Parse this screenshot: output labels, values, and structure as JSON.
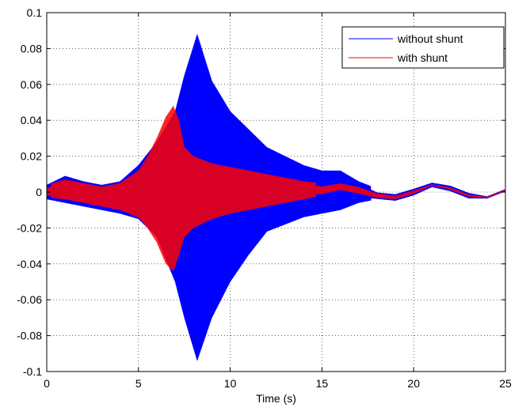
{
  "chart_data": {
    "type": "line",
    "title": "",
    "xlabel": "Time (s)",
    "ylabel": "",
    "xlim": [
      0,
      25
    ],
    "ylim": [
      -0.1,
      0.1
    ],
    "grid": true,
    "legend_position": "top-right",
    "xticks": [
      0,
      5,
      10,
      15,
      20,
      25
    ],
    "xtick_labels": [
      "0",
      "5",
      "10",
      "15",
      "20",
      "25"
    ],
    "yticks": [
      -0.1,
      -0.08,
      -0.06,
      -0.04,
      -0.02,
      0,
      0.02,
      0.04,
      0.06,
      0.08,
      0.1
    ],
    "ytick_labels": [
      "-0.1",
      "-0.08",
      "-0.06",
      "-0.04",
      "-0.02",
      "0",
      "0.02",
      "0.04",
      "0.06",
      "0.08",
      "0.1"
    ],
    "series": [
      {
        "name": "without shunt",
        "color": "#0000ff",
        "envelope": {
          "t": [
            0,
            1,
            2,
            3,
            4,
            5,
            6,
            7,
            7.5,
            8.2,
            9,
            10,
            11,
            12,
            13,
            14,
            15,
            16,
            17,
            18,
            19,
            20,
            21,
            22,
            23,
            24,
            25
          ],
          "upper": [
            0.004,
            0.009,
            0.006,
            0.004,
            0.006,
            0.015,
            0.028,
            0.045,
            0.065,
            0.088,
            0.062,
            0.045,
            0.035,
            0.025,
            0.02,
            0.015,
            0.012,
            0.012,
            0.006,
            0.002,
            0.002,
            0.004,
            0.005,
            0.003,
            0.001,
            -0.002,
            0.002
          ],
          "lower": [
            -0.004,
            -0.006,
            -0.008,
            -0.01,
            -0.012,
            -0.015,
            -0.025,
            -0.05,
            -0.07,
            -0.094,
            -0.07,
            -0.05,
            -0.035,
            -0.022,
            -0.018,
            -0.014,
            -0.012,
            -0.01,
            -0.006,
            -0.004,
            -0.004,
            -0.002,
            0.001,
            -0.002,
            -0.004,
            -0.004,
            0.0
          ]
        },
        "baseline": {
          "t": [
            0,
            1,
            2,
            3,
            4,
            5,
            6,
            7,
            8,
            9,
            10,
            11,
            12,
            13,
            14,
            15,
            16,
            17,
            18,
            19,
            20,
            21,
            22,
            23,
            24,
            25
          ],
          "y": [
            0.0,
            0.004,
            0.001,
            -0.002,
            0.001,
            0.003,
            0.002,
            0.0,
            0.0,
            0.0,
            0.0,
            0.0,
            0.0,
            0.0,
            0.002,
            0.0,
            0.003,
            0.001,
            -0.002,
            -0.003,
            0.0,
            0.004,
            0.002,
            -0.002,
            -0.003,
            0.001
          ]
        }
      },
      {
        "name": "with shunt",
        "color": "#ff0000",
        "envelope": {
          "t": [
            0,
            1,
            2,
            3,
            4,
            5,
            5.5,
            6,
            6.5,
            6.9,
            7.2,
            7.5,
            8,
            9,
            10,
            11,
            12,
            13,
            14,
            15,
            16,
            17,
            18,
            19,
            20,
            21,
            22,
            23,
            24,
            25
          ],
          "upper": [
            0.004,
            0.007,
            0.005,
            0.003,
            0.005,
            0.012,
            0.02,
            0.03,
            0.042,
            0.048,
            0.04,
            0.025,
            0.02,
            0.016,
            0.014,
            0.012,
            0.01,
            0.008,
            0.006,
            0.005,
            0.006,
            0.004,
            0.0,
            -0.002,
            0.002,
            0.004,
            0.002,
            -0.002,
            -0.003,
            0.001
          ],
          "lower": [
            -0.003,
            -0.004,
            -0.006,
            -0.008,
            -0.01,
            -0.014,
            -0.02,
            -0.028,
            -0.04,
            -0.044,
            -0.035,
            -0.025,
            -0.02,
            -0.015,
            -0.012,
            -0.01,
            -0.008,
            -0.006,
            -0.004,
            -0.002,
            0.0,
            -0.002,
            -0.004,
            -0.005,
            -0.001,
            0.003,
            0.0,
            -0.004,
            -0.004,
            0.0
          ]
        },
        "baseline": {
          "t": [
            0,
            1,
            2,
            3,
            4,
            5,
            6,
            7,
            8,
            9,
            10,
            11,
            12,
            13,
            14,
            15,
            16,
            17,
            18,
            19,
            20,
            21,
            22,
            23,
            24,
            25
          ],
          "y": [
            0.0,
            0.003,
            0.001,
            -0.002,
            0.001,
            0.002,
            0.002,
            0.002,
            0.0,
            0.0,
            0.001,
            0.0,
            0.0,
            0.001,
            0.002,
            0.001,
            0.003,
            0.001,
            -0.002,
            -0.003,
            0.0,
            0.004,
            0.002,
            -0.002,
            -0.003,
            0.001
          ]
        }
      }
    ]
  }
}
